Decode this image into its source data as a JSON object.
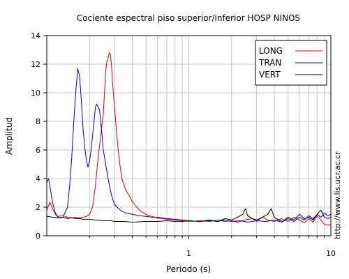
{
  "chart_data": {
    "type": "line",
    "title": "Cociente espectral piso superior/inferior  HOSP NINOS",
    "xlabel": "Periodo (s)",
    "ylabel": "Amplitud",
    "x_scale": "log",
    "xlim": [
      0.1,
      10
    ],
    "ylim": [
      0,
      14
    ],
    "x_ticks": [
      1,
      10
    ],
    "x_tick_labels": [
      "1",
      "10"
    ],
    "y_ticks": [
      0,
      2,
      4,
      6,
      8,
      10,
      12,
      14
    ],
    "y_tick_labels": [
      "0",
      "2",
      "4",
      "6",
      "8",
      "10",
      "12",
      "14"
    ],
    "grid": true,
    "legend_position": "top-right",
    "side_note": "http://www.lis.ucr.ac.cr",
    "series": [
      {
        "name": "LONG",
        "color": "#dd0000",
        "points": [
          [
            0.1,
            1.8
          ],
          [
            0.105,
            2.35
          ],
          [
            0.11,
            1.9
          ],
          [
            0.115,
            1.5
          ],
          [
            0.12,
            1.35
          ],
          [
            0.13,
            1.4
          ],
          [
            0.14,
            1.3
          ],
          [
            0.15,
            1.25
          ],
          [
            0.16,
            1.3
          ],
          [
            0.17,
            1.25
          ],
          [
            0.18,
            1.3
          ],
          [
            0.19,
            1.35
          ],
          [
            0.2,
            1.5
          ],
          [
            0.21,
            2.0
          ],
          [
            0.22,
            3.5
          ],
          [
            0.23,
            5.5
          ],
          [
            0.24,
            7.0
          ],
          [
            0.245,
            7.8
          ],
          [
            0.25,
            8.5
          ],
          [
            0.255,
            10.0
          ],
          [
            0.26,
            11.5
          ],
          [
            0.265,
            12.2
          ],
          [
            0.27,
            12.4
          ],
          [
            0.275,
            12.8
          ],
          [
            0.28,
            12.7
          ],
          [
            0.285,
            12.0
          ],
          [
            0.29,
            10.8
          ],
          [
            0.3,
            9.0
          ],
          [
            0.31,
            7.2
          ],
          [
            0.32,
            5.8
          ],
          [
            0.33,
            4.7
          ],
          [
            0.34,
            3.9
          ],
          [
            0.36,
            3.2
          ],
          [
            0.38,
            2.8
          ],
          [
            0.4,
            2.4
          ],
          [
            0.43,
            2.0
          ],
          [
            0.46,
            1.7
          ],
          [
            0.5,
            1.5
          ],
          [
            0.55,
            1.35
          ],
          [
            0.6,
            1.25
          ],
          [
            0.65,
            1.2
          ],
          [
            0.7,
            1.15
          ],
          [
            0.8,
            1.1
          ],
          [
            0.9,
            1.05
          ],
          [
            1.0,
            1.0
          ],
          [
            1.2,
            1.05
          ],
          [
            1.4,
            1.0
          ],
          [
            1.6,
            1.1
          ],
          [
            1.8,
            1.0
          ],
          [
            2.0,
            1.05
          ],
          [
            2.2,
            0.95
          ],
          [
            2.5,
            1.1
          ],
          [
            2.8,
            1.2
          ],
          [
            3.0,
            1.0
          ],
          [
            3.3,
            1.3
          ],
          [
            3.6,
            1.1
          ],
          [
            4.0,
            1.0
          ],
          [
            4.5,
            1.2
          ],
          [
            5.0,
            1.0
          ],
          [
            5.5,
            1.3
          ],
          [
            6.0,
            1.1
          ],
          [
            6.5,
            0.9
          ],
          [
            7.0,
            1.2
          ],
          [
            7.5,
            0.95
          ],
          [
            8.0,
            1.4
          ],
          [
            8.5,
            1.1
          ],
          [
            9.0,
            0.8
          ],
          [
            9.5,
            0.75
          ],
          [
            10.0,
            0.8
          ]
        ]
      },
      {
        "name": "TRAN",
        "color": "#0000cc",
        "points": [
          [
            0.1,
            3.7
          ],
          [
            0.103,
            4.0
          ],
          [
            0.106,
            3.3
          ],
          [
            0.11,
            2.3
          ],
          [
            0.115,
            1.6
          ],
          [
            0.12,
            1.3
          ],
          [
            0.125,
            1.25
          ],
          [
            0.13,
            1.3
          ],
          [
            0.14,
            2.0
          ],
          [
            0.145,
            3.5
          ],
          [
            0.15,
            5.5
          ],
          [
            0.155,
            8.0
          ],
          [
            0.16,
            10.0
          ],
          [
            0.165,
            11.7
          ],
          [
            0.17,
            11.2
          ],
          [
            0.175,
            9.5
          ],
          [
            0.18,
            7.5
          ],
          [
            0.185,
            6.2
          ],
          [
            0.19,
            5.3
          ],
          [
            0.195,
            4.8
          ],
          [
            0.2,
            5.2
          ],
          [
            0.205,
            6.0
          ],
          [
            0.21,
            7.0
          ],
          [
            0.215,
            8.0
          ],
          [
            0.22,
            9.0
          ],
          [
            0.225,
            9.2
          ],
          [
            0.23,
            9.0
          ],
          [
            0.235,
            8.8
          ],
          [
            0.24,
            8.0
          ],
          [
            0.245,
            7.0
          ],
          [
            0.25,
            6.0
          ],
          [
            0.26,
            5.0
          ],
          [
            0.27,
            4.0
          ],
          [
            0.28,
            3.2
          ],
          [
            0.29,
            2.6
          ],
          [
            0.3,
            2.2
          ],
          [
            0.32,
            1.9
          ],
          [
            0.34,
            1.7
          ],
          [
            0.36,
            1.6
          ],
          [
            0.4,
            1.5
          ],
          [
            0.45,
            1.4
          ],
          [
            0.5,
            1.35
          ],
          [
            0.55,
            1.3
          ],
          [
            0.6,
            1.3
          ],
          [
            0.65,
            1.25
          ],
          [
            0.7,
            1.2
          ],
          [
            0.8,
            1.15
          ],
          [
            0.9,
            1.1
          ],
          [
            1.0,
            1.05
          ],
          [
            1.2,
            1.0
          ],
          [
            1.4,
            1.05
          ],
          [
            1.6,
            1.0
          ],
          [
            1.8,
            1.1
          ],
          [
            2.0,
            1.0
          ],
          [
            2.3,
            1.05
          ],
          [
            2.6,
            0.95
          ],
          [
            3.0,
            1.05
          ],
          [
            3.5,
            1.0
          ],
          [
            4.0,
            1.1
          ],
          [
            4.5,
            0.95
          ],
          [
            5.0,
            1.2
          ],
          [
            5.5,
            1.0
          ],
          [
            6.0,
            1.3
          ],
          [
            6.5,
            1.1
          ],
          [
            7.0,
            1.4
          ],
          [
            7.5,
            1.2
          ],
          [
            8.0,
            1.5
          ],
          [
            8.5,
            1.3
          ],
          [
            9.0,
            1.6
          ],
          [
            9.5,
            1.4
          ],
          [
            10.0,
            1.5
          ]
        ]
      },
      {
        "name": "VERT",
        "color": "#000000",
        "points": [
          [
            0.1,
            1.35
          ],
          [
            0.11,
            1.3
          ],
          [
            0.12,
            1.25
          ],
          [
            0.13,
            1.3
          ],
          [
            0.14,
            1.2
          ],
          [
            0.15,
            1.25
          ],
          [
            0.16,
            1.2
          ],
          [
            0.17,
            1.2
          ],
          [
            0.18,
            1.15
          ],
          [
            0.2,
            1.15
          ],
          [
            0.22,
            1.1
          ],
          [
            0.25,
            1.05
          ],
          [
            0.28,
            1.05
          ],
          [
            0.3,
            1.0
          ],
          [
            0.35,
            1.0
          ],
          [
            0.4,
            0.95
          ],
          [
            0.5,
            1.0
          ],
          [
            0.6,
            1.0
          ],
          [
            0.7,
            1.05
          ],
          [
            0.8,
            1.0
          ],
          [
            0.9,
            1.0
          ],
          [
            1.0,
            1.05
          ],
          [
            1.2,
            1.0
          ],
          [
            1.4,
            1.1
          ],
          [
            1.6,
            1.0
          ],
          [
            1.8,
            1.2
          ],
          [
            2.0,
            1.1
          ],
          [
            2.2,
            1.3
          ],
          [
            2.4,
            1.5
          ],
          [
            2.5,
            1.9
          ],
          [
            2.6,
            1.4
          ],
          [
            2.8,
            1.2
          ],
          [
            3.0,
            1.1
          ],
          [
            3.3,
            1.3
          ],
          [
            3.6,
            1.5
          ],
          [
            3.8,
            1.9
          ],
          [
            4.0,
            1.3
          ],
          [
            4.3,
            1.1
          ],
          [
            4.6,
            1.0
          ],
          [
            5.0,
            1.3
          ],
          [
            5.5,
            1.1
          ],
          [
            6.0,
            1.5
          ],
          [
            6.5,
            1.2
          ],
          [
            7.0,
            1.3
          ],
          [
            7.5,
            1.1
          ],
          [
            8.0,
            1.5
          ],
          [
            8.5,
            1.8
          ],
          [
            9.0,
            1.3
          ],
          [
            9.5,
            1.2
          ],
          [
            10.0,
            1.3
          ]
        ]
      }
    ]
  }
}
